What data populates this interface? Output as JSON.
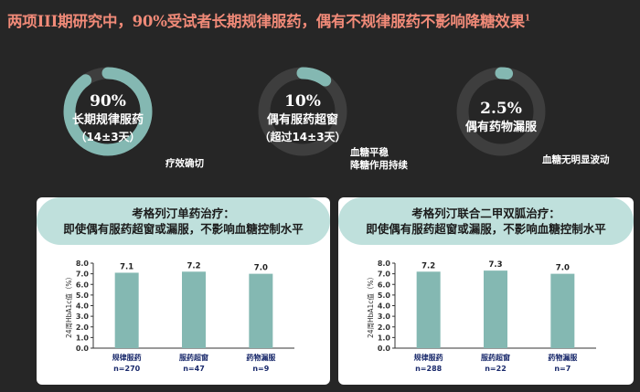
{
  "title": "两项III期研究中，90%受试者长期规律服药，偶有不规律服药不影响降糖效果",
  "title_sup": "1",
  "colors": {
    "ring": "#84b8b2",
    "ring_track": "#3e3e3e",
    "bar": "#84b8b2",
    "title": "#f08a78",
    "pill": "#bfe0dc"
  },
  "rings": [
    {
      "pct_text": "90%",
      "label": "长期规律服药",
      "sub": "（14±3天）",
      "note": "疗效确切",
      "fraction": 0.9
    },
    {
      "pct_text": "10%",
      "label": "偶有服药超窗",
      "sub": "（超过14±3天）",
      "note": "血糖平稳\n降糖作用持续",
      "fraction": 0.1
    },
    {
      "pct_text": "2.5%",
      "label": "偶有药物漏服",
      "sub": "",
      "note": "血糖无明显波动",
      "fraction": 0.025
    }
  ],
  "panels": [
    {
      "heading": "考格列汀单药治疗：",
      "subheading": "即使偶有服药超窗或漏服，不影响血糖控制水平"
    },
    {
      "heading": "考格列汀联合二甲双胍治疗：",
      "subheading": "即使偶有服药超窗或漏服，不影响血糖控制水平"
    }
  ],
  "chart_data": [
    {
      "type": "bar",
      "categories": [
        "规律服药",
        "服药超窗",
        "药物漏服"
      ],
      "n_labels": [
        "n=270",
        "n=47",
        "n=9"
      ],
      "values": [
        7.1,
        7.2,
        7.0
      ],
      "value_labels": [
        "7.1",
        "7.2",
        "7.0"
      ],
      "ylabel": "24周HbA1c值（%）",
      "ylim": [
        0,
        8
      ],
      "yticks": [
        "0.0",
        "1.0",
        "2.0",
        "3.0",
        "4.0",
        "5.0",
        "6.0",
        "7.0",
        "8.0"
      ]
    },
    {
      "type": "bar",
      "categories": [
        "规律服药",
        "服药超窗",
        "药物漏服"
      ],
      "n_labels": [
        "n=288",
        "n=22",
        "n=7"
      ],
      "values": [
        7.2,
        7.3,
        7.0
      ],
      "value_labels": [
        "7.2",
        "7.3",
        "7.0"
      ],
      "ylabel": "24周HbA1c值（%）",
      "ylim": [
        0,
        8
      ],
      "yticks": [
        "0.0",
        "1.0",
        "2.0",
        "3.0",
        "4.0",
        "5.0",
        "6.0",
        "7.0",
        "8.0"
      ]
    }
  ]
}
